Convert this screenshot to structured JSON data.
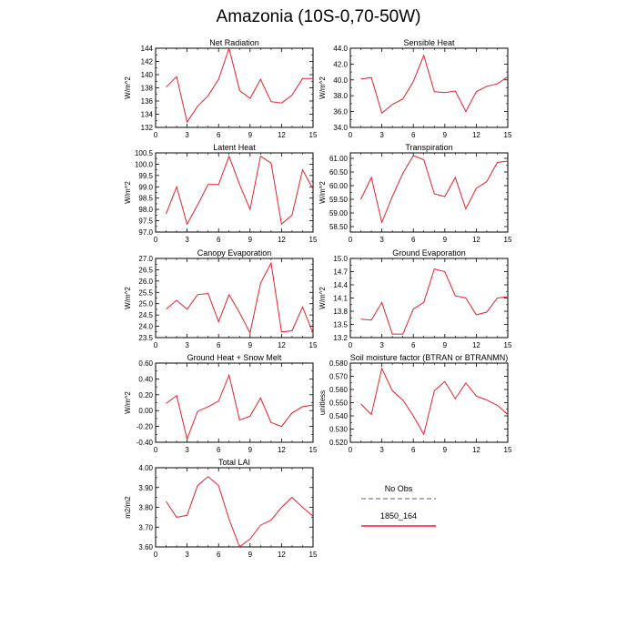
{
  "figure": {
    "title": "Amazonia (10S-0,70-50W)"
  },
  "legend": {
    "items": [
      {
        "label": "No Obs",
        "color": "#8a8ae6",
        "dash": true
      },
      {
        "label": "1850_164",
        "color": "#e8202a",
        "dash": false
      }
    ]
  },
  "chart_data": [
    {
      "type": "line",
      "title": "Net Radiation",
      "ylabel": "W/m^2",
      "x": [
        1,
        2,
        3,
        4,
        5,
        6,
        7,
        8,
        9,
        10,
        11,
        12,
        13,
        14,
        15
      ],
      "xlim": [
        0,
        15
      ],
      "xticks": [
        "0",
        "3",
        "6",
        "9",
        "12",
        "15"
      ],
      "ylim": [
        132,
        144
      ],
      "yticks": [
        "132",
        "134",
        "136",
        "138",
        "140",
        "142",
        "144"
      ],
      "series": [
        {
          "color": "#e8202a",
          "values": [
            138.1,
            139.7,
            132.8,
            135.2,
            136.8,
            139.3,
            144.0,
            137.6,
            136.4,
            139.3,
            135.9,
            135.7,
            136.9,
            139.4,
            139.4
          ]
        }
      ]
    },
    {
      "type": "line",
      "title": "Sensible Heat",
      "ylabel": "W/m^2",
      "x": [
        1,
        2,
        3,
        4,
        5,
        6,
        7,
        8,
        9,
        10,
        11,
        12,
        13,
        14,
        15
      ],
      "xlim": [
        0,
        15
      ],
      "xticks": [
        "0",
        "3",
        "6",
        "9",
        "12",
        "15"
      ],
      "ylim": [
        34,
        44
      ],
      "yticks": [
        "34.0",
        "36.0",
        "38.0",
        "40.0",
        "42.0",
        "44.0"
      ],
      "series": [
        {
          "color": "#e8202a",
          "values": [
            40.1,
            40.3,
            35.8,
            36.9,
            37.6,
            39.8,
            43.1,
            38.5,
            38.4,
            38.6,
            36.0,
            38.5,
            39.2,
            39.5,
            40.4
          ]
        }
      ]
    },
    {
      "type": "line",
      "title": "Latent Heat",
      "ylabel": "W/m^2",
      "x": [
        1,
        2,
        3,
        4,
        5,
        6,
        7,
        8,
        9,
        10,
        11,
        12,
        13,
        14,
        15
      ],
      "xlim": [
        0,
        15
      ],
      "xticks": [
        "0",
        "3",
        "6",
        "9",
        "12",
        "15"
      ],
      "ylim": [
        97,
        100.5
      ],
      "yticks": [
        "97.0",
        "97.5",
        "98.0",
        "98.5",
        "99.0",
        "99.5",
        "100.0",
        "100.5"
      ],
      "series": [
        {
          "color": "#e8202a",
          "values": [
            97.8,
            99.0,
            97.35,
            98.2,
            99.1,
            99.1,
            100.35,
            99.1,
            98.0,
            100.35,
            100.05,
            97.35,
            97.75,
            99.75,
            98.9
          ]
        }
      ]
    },
    {
      "type": "line",
      "title": "Transpiration",
      "ylabel": "W/m^2",
      "x": [
        1,
        2,
        3,
        4,
        5,
        6,
        7,
        8,
        9,
        10,
        11,
        12,
        13,
        14,
        15
      ],
      "xlim": [
        0,
        15
      ],
      "xticks": [
        "0",
        "3",
        "6",
        "9",
        "12",
        "15"
      ],
      "ylim": [
        58.3,
        61.2
      ],
      "yticks": [
        "58.50",
        "59.00",
        "59.50",
        "60.00",
        "60.50",
        "61.00"
      ],
      "series": [
        {
          "color": "#e8202a",
          "values": [
            59.5,
            60.3,
            58.65,
            59.6,
            60.45,
            61.1,
            60.95,
            59.7,
            59.6,
            60.3,
            59.15,
            59.9,
            60.15,
            60.85,
            60.9
          ]
        }
      ]
    },
    {
      "type": "line",
      "title": "Canopy Evaporation",
      "ylabel": "W/m^2",
      "x": [
        1,
        2,
        3,
        4,
        5,
        6,
        7,
        8,
        9,
        10,
        11,
        12,
        13,
        14,
        15
      ],
      "xlim": [
        0,
        15
      ],
      "xticks": [
        "0",
        "3",
        "6",
        "9",
        "12",
        "15"
      ],
      "ylim": [
        23.5,
        27
      ],
      "yticks": [
        "23.5",
        "24.0",
        "24.5",
        "25.0",
        "25.5",
        "26.0",
        "26.5",
        "27.0"
      ],
      "series": [
        {
          "color": "#e8202a",
          "values": [
            24.75,
            25.15,
            24.75,
            25.4,
            25.45,
            24.2,
            25.4,
            24.6,
            23.7,
            25.9,
            26.8,
            23.75,
            23.8,
            24.85,
            23.7
          ]
        }
      ]
    },
    {
      "type": "line",
      "title": "Ground Evaporation",
      "ylabel": "W/m^2",
      "x": [
        1,
        2,
        3,
        4,
        5,
        6,
        7,
        8,
        9,
        10,
        11,
        12,
        13,
        14,
        15
      ],
      "xlim": [
        0,
        15
      ],
      "xticks": [
        "0",
        "3",
        "6",
        "9",
        "12",
        "15"
      ],
      "ylim": [
        13.2,
        15
      ],
      "yticks": [
        "13.2",
        "13.5",
        "13.8",
        "14.1",
        "14.4",
        "14.7",
        "15.0"
      ],
      "series": [
        {
          "color": "#e8202a",
          "values": [
            13.62,
            13.6,
            14.0,
            13.28,
            13.28,
            13.85,
            14.0,
            14.76,
            14.7,
            14.15,
            14.1,
            13.72,
            13.78,
            14.1,
            14.13
          ]
        }
      ]
    },
    {
      "type": "line",
      "title": "Ground Heat + Snow Melt",
      "ylabel": "W/m^2",
      "x": [
        1,
        2,
        3,
        4,
        5,
        6,
        7,
        8,
        9,
        10,
        11,
        12,
        13,
        14,
        15
      ],
      "xlim": [
        0,
        15
      ],
      "xticks": [
        "0",
        "3",
        "6",
        "9",
        "12",
        "15"
      ],
      "ylim": [
        -0.4,
        0.6
      ],
      "yticks": [
        "-0.40",
        "-0.20",
        "0.00",
        "0.20",
        "0.40",
        "0.60"
      ],
      "series": [
        {
          "color": "#e8202a",
          "values": [
            0.09,
            0.19,
            -0.36,
            -0.01,
            0.05,
            0.12,
            0.45,
            -0.12,
            -0.07,
            0.16,
            -0.15,
            -0.2,
            -0.03,
            0.05,
            0.07
          ]
        }
      ]
    },
    {
      "type": "line",
      "title": "Soil moisture factor (BTRAN or BTRANMN)",
      "ylabel": "unitless",
      "x": [
        1,
        2,
        3,
        4,
        5,
        6,
        7,
        8,
        9,
        10,
        11,
        12,
        13,
        14,
        15
      ],
      "xlim": [
        0,
        15
      ],
      "xticks": [
        "0",
        "3",
        "6",
        "9",
        "12",
        "15"
      ],
      "ylim": [
        0.52,
        0.58
      ],
      "yticks": [
        "0.520",
        "0.530",
        "0.540",
        "0.550",
        "0.560",
        "0.570",
        "0.580"
      ],
      "series": [
        {
          "color": "#e8202a",
          "values": [
            0.549,
            0.541,
            0.576,
            0.559,
            0.552,
            0.54,
            0.526,
            0.559,
            0.566,
            0.553,
            0.565,
            0.555,
            0.552,
            0.548,
            0.541
          ]
        }
      ]
    },
    {
      "type": "line",
      "title": "Total LAI",
      "ylabel": "m2/m2",
      "x": [
        1,
        2,
        3,
        4,
        5,
        6,
        7,
        8,
        9,
        10,
        11,
        12,
        13,
        14,
        15
      ],
      "xlim": [
        0,
        15
      ],
      "xticks": [
        "0",
        "3",
        "6",
        "9",
        "12",
        "15"
      ],
      "ylim": [
        3.6,
        4.0
      ],
      "yticks": [
        "3.60",
        "3.70",
        "3.80",
        "3.90",
        "4.00"
      ],
      "series": [
        {
          "color": "#e8202a",
          "values": [
            3.83,
            3.75,
            3.76,
            3.91,
            3.955,
            3.91,
            3.74,
            3.6,
            3.64,
            3.71,
            3.735,
            3.8,
            3.85,
            3.8,
            3.755
          ]
        }
      ]
    }
  ]
}
